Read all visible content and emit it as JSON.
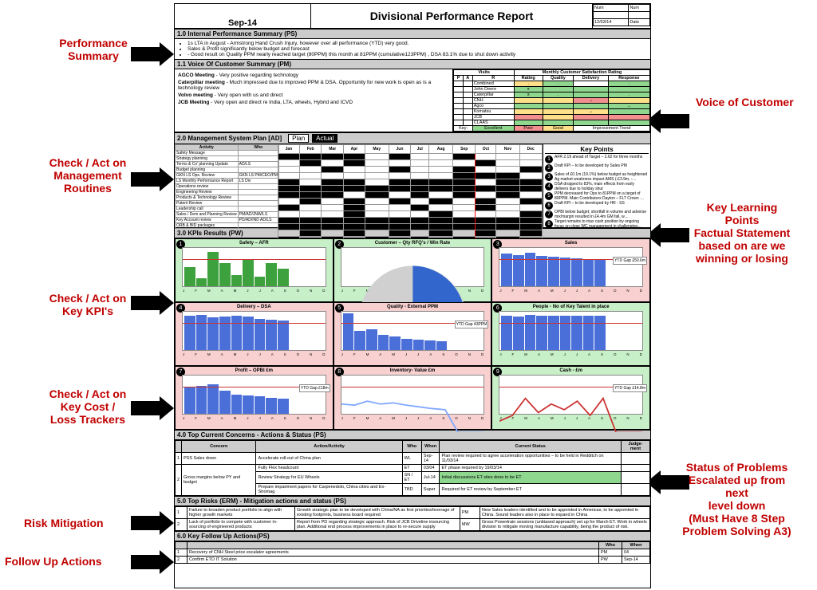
{
  "header": {
    "period": "Sep-14",
    "title": "Divisional Performance Report",
    "meta_num": "Num",
    "meta_date": "Date",
    "meta_date_val": "12/03/14"
  },
  "sections": {
    "s1_0": "1.0 Internal Performance Summary (PS)",
    "s1_1": "1.1 Voice Of Customer Summary (PM)",
    "s2_0": "2.0  Management System Plan  [AD]",
    "s3_0": "3.0 KPIs Results (PW)",
    "s4_0": "4.0 Top Current Concerns - Actions & Status (PS)",
    "s5_0": "5.0 Top Risks (ERM)  -  Mitigation actions and status (PS)",
    "s6_0": "6.0 Key Follow Up Actions(PS)"
  },
  "ps_lines": [
    "1s LTA in August  - Armstrong Hand Crush Injury, however over all performance (YTD) very good.",
    "Sales & Profit significantly below budget and forecast",
    "- Good result on Quality PPM  nearly reached target (80PPM) this month at 81PPM (cumulative123PPM) , DSA  83.1% due to shut down activity"
  ],
  "voc_meetings": [
    {
      "name": "AGCO Meeting",
      "text": "- Very positive regarding technology"
    },
    {
      "name": "Caterpillar meeting",
      "text": "- Much impressed due to improved PPM & DSA. Opportunity for new work is open as is a technology review"
    },
    {
      "name": "Volvo meeting",
      "text": "- Very open with us and direct"
    },
    {
      "name": "JCB Meeting",
      "text": "- Very open and direct re India, LTA, wheels, Hybrid and ICVD"
    }
  ],
  "rating_header": {
    "visits": "Visits",
    "par": [
      "P",
      "A",
      "R"
    ],
    "title": "Monthly Customer Satisfaction Rating",
    "cols": [
      "Rating",
      "Quality",
      "Delivery",
      "Response"
    ]
  },
  "rating_rows": [
    {
      "cust": "Combined",
      "cells": [
        ".",
        ".",
        "",
        "."
      ],
      "colors": [
        "#ffe08a",
        "#8fd68f",
        "",
        "#8fd68f"
      ]
    },
    {
      "cust": "John Deere",
      "cells": [
        "x",
        "",
        "",
        ""
      ],
      "colors": [
        "#8fd68f",
        "#8fd68f",
        "#8fd68f",
        "#8fd68f"
      ]
    },
    {
      "cust": "Caterpillar",
      "cells": [
        "x",
        ".",
        "",
        "."
      ],
      "colors": [
        "#8fd68f",
        "#8fd68f",
        "#8fd68f",
        "#8fd68f"
      ]
    },
    {
      "cust": "CNH",
      "cells": [
        "",
        "",
        "→",
        ""
      ],
      "colors": [
        "#ffe08a",
        "#ffe08a",
        "#f28f8f",
        "#ffe08a"
      ]
    },
    {
      "cust": "Agco",
      "cells": [
        "",
        "",
        "",
        "→"
      ],
      "colors": [
        "#8fd68f",
        "#8fd68f",
        "#8fd68f",
        "#8fd68f"
      ]
    },
    {
      "cust": "Komatsu",
      "cells": [
        "",
        "",
        "→",
        ""
      ],
      "colors": [
        "#ffe08a",
        "#ffe08a",
        "#ffe08a",
        "#8fd68f"
      ]
    },
    {
      "cust": "JCB",
      "cells": [
        "",
        "",
        "",
        ""
      ],
      "colors": [
        "#f28f8f",
        "#ffe08a",
        "#f28f8f",
        "#f28f8f"
      ]
    },
    {
      "cust": "CLAAS",
      "cells": [
        "",
        "",
        "",
        ""
      ],
      "colors": [
        "#8fd68f",
        "#8fd68f",
        "#8fd68f",
        "#8fd68f"
      ]
    }
  ],
  "rating_key": {
    "Key": "Key:",
    "Excellent": "Excellent",
    "Poor": "Poor",
    "Good": "Good",
    "Imp": "Improvement Trend"
  },
  "msp_cols": {
    "activity": "Activity",
    "who": "Who",
    "plan": "Plan",
    "actual": "Actual"
  },
  "msp_months": [
    "Jan",
    "Feb",
    "Mar",
    "Apr",
    "May",
    "Jun",
    "Jul",
    "Aug",
    "Sep",
    "Oct",
    "Nov",
    "Dec"
  ],
  "msp_rows": [
    {
      "a": "Safety Message",
      "who": "",
      "g": [
        1,
        1,
        1,
        1,
        0,
        1,
        0,
        0,
        1,
        0,
        0,
        0
      ]
    },
    {
      "a": "Strategy planning",
      "who": "",
      "g": [
        0,
        1,
        0,
        1,
        0,
        0,
        0,
        0,
        0,
        1,
        0,
        0
      ]
    },
    {
      "a": "Terms & Co' planning Update",
      "who": "AD/LS",
      "g": [
        0,
        0,
        1,
        0,
        0,
        1,
        0,
        0,
        1,
        0,
        0,
        1
      ]
    },
    {
      "a": "Budget planning",
      "who": "",
      "g": [
        0,
        0,
        0,
        0,
        0,
        0,
        0,
        0,
        1,
        1,
        1,
        0
      ]
    },
    {
      "a": "GKN LS Ops. Review",
      "who": "GKN LS PM/CEO/PM",
      "g": [
        1,
        0,
        1,
        1,
        0,
        1,
        1,
        1,
        1,
        0,
        1,
        1
      ]
    },
    {
      "a": "LS Monthly Performance Report",
      "who": "LS Div",
      "g": [
        1,
        1,
        1,
        1,
        1,
        1,
        1,
        1,
        1,
        1,
        1,
        1
      ]
    },
    {
      "a": "Operations review",
      "who": "",
      "g": [
        1,
        1,
        1,
        0,
        1,
        0,
        1,
        0,
        1,
        0,
        1,
        0
      ]
    },
    {
      "a": "Engineering Review",
      "who": "",
      "g": [
        0,
        1,
        0,
        1,
        0,
        1,
        0,
        1,
        0,
        1,
        0,
        1
      ]
    },
    {
      "a": "Products & Technology Review",
      "who": "",
      "g": [
        1,
        0,
        0,
        1,
        0,
        0,
        1,
        0,
        0,
        1,
        0,
        0
      ]
    },
    {
      "a": "Patent Review",
      "who": "",
      "g": [
        0,
        0,
        0,
        1,
        0,
        0,
        0,
        1,
        0,
        0,
        0,
        1
      ]
    },
    {
      "a": "Leadership call",
      "who": "",
      "g": [
        1,
        1,
        1,
        1,
        1,
        1,
        1,
        1,
        1,
        1,
        1,
        1
      ]
    },
    {
      "a": "Sales / Dem and Planning  Review",
      "who": "PM/AD/JNW/LS",
      "g": [
        1,
        1,
        1,
        1,
        1,
        1,
        1,
        1,
        1,
        1,
        1,
        1
      ]
    },
    {
      "a": "Key Account review",
      "who": "PD/AD/IND AD/LS",
      "g": [
        0,
        1,
        0,
        1,
        0,
        1,
        0,
        1,
        0,
        1,
        0,
        1
      ]
    },
    {
      "a": "ORB & BID packages",
      "who": "",
      "g": [
        1,
        0,
        1,
        0,
        1,
        0,
        1,
        0,
        1,
        0,
        1,
        0
      ]
    }
  ],
  "key_points_title": "Key Points",
  "key_points": [
    "AFR 2.19 ahead of Target – 2.62 for three months",
    "Draft KPI – to be developed by Sales PM",
    "Sales of £0.1m (19.1%) below budget as heightened Ag market weakness impact AMS (-£3.9m, -34%) & EU -£3.5m, -29.2%). PSS div of -£3.2m (35.6%) cast tower truck, auto & ind demand, with sales to CIS regions are also heavily down against budget. NA slightly weaker; NA -£0.6m & EU £0.5m. Ind market robust enough -£0.5m below budget. Globally sales shortfall on key accounts was £4.1m with the bulk of the shortfall -£6.0m on the more diverse smaller customers.",
    "DSA dropped to 83%, main effects from early delivers due to holiday shut",
    "PPM decreased for Ops to 81PPM on a target of 80PPM. Main Contributors Dayton – FLT Crown – missing components",
    "Draft KPI – to be developed by  HR - SS",
    "OPBI below budget; shortfall in volume and adverse mix/margin resulted in £4.4m GM fall, which was partially mitigated by £0.8m fixed cost savings with ongoing tight control on  fixed",
    "Target remains to max cash position by ongoing focus on close WC management in challenging  end market conditions remains in place"
  ],
  "kpi_cards": [
    {
      "n": "1",
      "title": "Safety – AFR",
      "cls": "kpi-g",
      "type": "bar",
      "color": "#3da23d",
      "vals": [
        0.5,
        0.2,
        0.9,
        0.6,
        0.3,
        0.7,
        0.25,
        0.6,
        0.45,
        0,
        0,
        0
      ],
      "gap": ""
    },
    {
      "n": "2",
      "title": "Customer – Qty RFQ's / Win Rate",
      "cls": "kpi-g",
      "type": "pie",
      "color": "#3366cc",
      "vals": [],
      "gap": ""
    },
    {
      "n": "3",
      "title": "Sales",
      "cls": "kpi-r",
      "type": "bar",
      "color": "#4a6fd8",
      "vals": [
        0.85,
        0.82,
        0.88,
        0.8,
        0.78,
        0.75,
        0.72,
        0.7,
        0.68,
        0,
        0,
        0
      ],
      "gap": "YTD Gap £50.6m"
    },
    {
      "n": "4",
      "title": "Delivery – DSA",
      "cls": "kpi-r",
      "type": "bar",
      "color": "#4a6fd8",
      "vals": [
        0.9,
        0.92,
        0.85,
        0.88,
        0.9,
        0.87,
        0.82,
        0.8,
        0.78,
        0,
        0,
        0
      ],
      "gap": ""
    },
    {
      "n": "5",
      "title": "Quality - External PPM",
      "cls": "kpi-r",
      "type": "bar",
      "color": "#4a6fd8",
      "vals": [
        0.95,
        0.5,
        0.55,
        0.4,
        0.35,
        0.3,
        0.28,
        0.25,
        0.22,
        0,
        0,
        0
      ],
      "gap": "YTD Gap 43PPM"
    },
    {
      "n": "6",
      "title": "People - No of Key Talent in place",
      "cls": "kpi-g",
      "type": "bar-multi",
      "color": "#4a6fd8",
      "vals": [
        0.9,
        0.88,
        0.92,
        0.9,
        0.9,
        0.9,
        0.9,
        0.9,
        0.9,
        0,
        0,
        0
      ],
      "gap": ""
    },
    {
      "n": "7",
      "title": "Profit – OPBI £m",
      "cls": "kpi-r",
      "type": "bar",
      "color": "#4a6fd8",
      "vals": [
        0.7,
        0.72,
        0.78,
        0.6,
        0.5,
        0.48,
        0.45,
        0.42,
        0.4,
        0,
        0,
        0
      ],
      "gap": "YTD Gap £18m"
    },
    {
      "n": "8",
      "title": "Inventory- Value £m",
      "cls": "kpi-r",
      "type": "line",
      "color": "#7fa8ff",
      "vals": [
        0.5,
        0.48,
        0.55,
        0.5,
        0.52,
        0.48,
        0.45,
        0.42,
        0.4,
        0,
        0,
        0
      ],
      "gap": ""
    },
    {
      "n": "9",
      "title": "Cash - £m",
      "cls": "kpi-g",
      "type": "line",
      "color": "#cc3333",
      "vals": [
        0.2,
        0.3,
        0.6,
        0.35,
        0.5,
        0.4,
        0.55,
        0.3,
        0.6,
        0,
        0,
        0
      ],
      "gap": "YTD Gap £14.8m"
    }
  ],
  "kpi_legends": {
    "dsa": "— DSA  — Target",
    "oppm": "— Ops PPM  — Profit PPM  — Service PPM",
    "stock": "— Stock £m  — Target",
    "opbi": "— OPBI £m  — Budget",
    "cash": "— Operating Cash Flow - £m",
    "ppl": "Eur / Asia / AMS / Eur Target / Asia Target / AMS Target"
  },
  "month_letters": [
    "J",
    "F",
    "M",
    "A",
    "M",
    "J",
    "J",
    "A",
    "S",
    "O",
    "N",
    "D"
  ],
  "concerns_h": [
    "",
    "Concern",
    "Action/Activity",
    "Who",
    "When",
    "Current Status",
    "Judge-ment"
  ],
  "concerns": [
    {
      "n": "1",
      "concern": "PSS Sales down",
      "action": "Accelerate roll-out of China plan",
      "who": "WL",
      "when": "Sep-14",
      "status": "Plan review required to agree acceleration opportunities – to be held in Redditch on 11/03/14"
    },
    {
      "n": "2",
      "concern": "Gross margins below PY and budget",
      "actions": [
        {
          "a": "Fully Flex headcount",
          "who": "ET",
          "when": "03/04",
          "status": "ET phase required by 19/03/14"
        },
        {
          "a": "Review Strategy for EU Wheels",
          "who": "SN / ET",
          "when": "Jul-14",
          "status": "Initial discussions ET sites done to be ET"
        },
        {
          "a": "Prepare impairment papers for Carpenedolo, China cities and Ex-Stromag",
          "who": "TBD",
          "when": "Super",
          "status": "Required for ET review by September ET"
        }
      ]
    }
  ],
  "risks": [
    {
      "n": "1",
      "risk": "Failure to broaden product portfolio to align with higher growth markets",
      "mit": "Growth strategic plan to be developed with China/NA as first priorities/leverage of existing footprints, business board required",
      "who": "PM",
      "status": "New Sales leaders identified and to be appointed in Americas; to be appointed in China. Sound leaders also in place to expand in China"
    },
    {
      "n": "2",
      "risk": "Lack of portfolio to compete with customer in-sourcing of engineered products",
      "mit": "Report from PD regarding strategic approach. Risk of JCB Driveline insourcing plan. Additional end process improvements in place to re-secure supply",
      "who": "MW",
      "status": "Gross Powertrain sessions (unbiased approach) set up for March ET. Work in wheels division to mitigate moving manufacture capability, being the product of risk."
    }
  ],
  "followups_h": [
    "",
    "",
    "Who",
    "When"
  ],
  "followups": [
    {
      "n": "1",
      "text": "Recovery of CNH Steel price escalator agreements",
      "who": "PM",
      "when": "04"
    },
    {
      "n": "2",
      "text": "Confirm ETO IT Solution",
      "who": "PW",
      "when": "Sep-14"
    }
  ],
  "annots": {
    "ps": "Performance\nSummary",
    "voc": "Voice of Customer",
    "mgmt": "Check / Act on\nManagement\nRoutines",
    "klp": "Key Learning\nPoints\nFactual Statement\nbased on are we\nwinning or losing",
    "kpi": "Check / Act on\nKey KPI's",
    "cost": "Check / Act on\nKey Cost /\nLoss Trackers",
    "status": "Status of Problems\nEscalated up from\nnext\nlevel down\n(Must Have 8 Step\nProblem Solving A3)",
    "risk": "Risk Mitigation",
    "follow": "Follow Up Actions"
  }
}
